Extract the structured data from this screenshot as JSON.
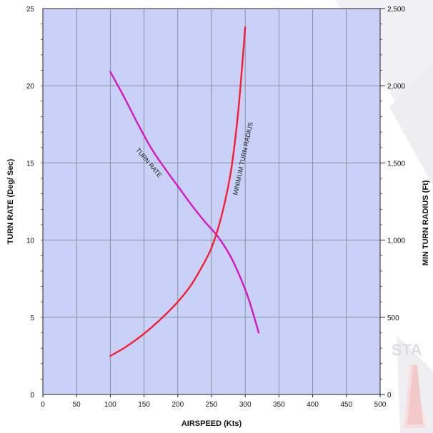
{
  "chart_data": {
    "type": "line",
    "title": "",
    "xlabel": "AIRSPEED (Kts)",
    "ylabel_left": "TURN RATE (Deg/ Sec)",
    "ylabel_right": "MIN TURN RADIUS (Ft)",
    "xlim": [
      0,
      500
    ],
    "ylim_left": [
      0,
      25
    ],
    "ylim_right": [
      0,
      2500
    ],
    "x_ticks": [
      "0",
      "50",
      "100",
      "150",
      "200",
      "250",
      "300",
      "350",
      "400",
      "450",
      "500"
    ],
    "y_left_ticks": [
      "0",
      "5",
      "10",
      "15",
      "20",
      "25"
    ],
    "y_right_ticks": [
      "0",
      "500",
      "1,000",
      "1,500",
      "2,000",
      "2,500"
    ],
    "grid": true,
    "plot_bg": "#c8d2f8",
    "series": [
      {
        "name": "TURN RATE",
        "axis": "left",
        "color": "#d614c8",
        "x": [
          100,
          120,
          140,
          160,
          180,
          200,
          220,
          240,
          260,
          280,
          300,
          310,
          320
        ],
        "y": [
          20.9,
          19.3,
          17.6,
          16.0,
          14.7,
          13.5,
          12.3,
          11.2,
          10.2,
          8.8,
          6.8,
          5.5,
          4.0
        ]
      },
      {
        "name": "MINIMUM TURN RADIUS",
        "axis": "right",
        "color": "#ff1a33",
        "x": [
          100,
          120,
          140,
          160,
          180,
          200,
          220,
          240,
          250,
          260,
          270,
          280,
          290,
          300
        ],
        "y": [
          250,
          300,
          360,
          430,
          510,
          600,
          710,
          860,
          950,
          1080,
          1250,
          1480,
          1850,
          2380
        ]
      }
    ]
  }
}
